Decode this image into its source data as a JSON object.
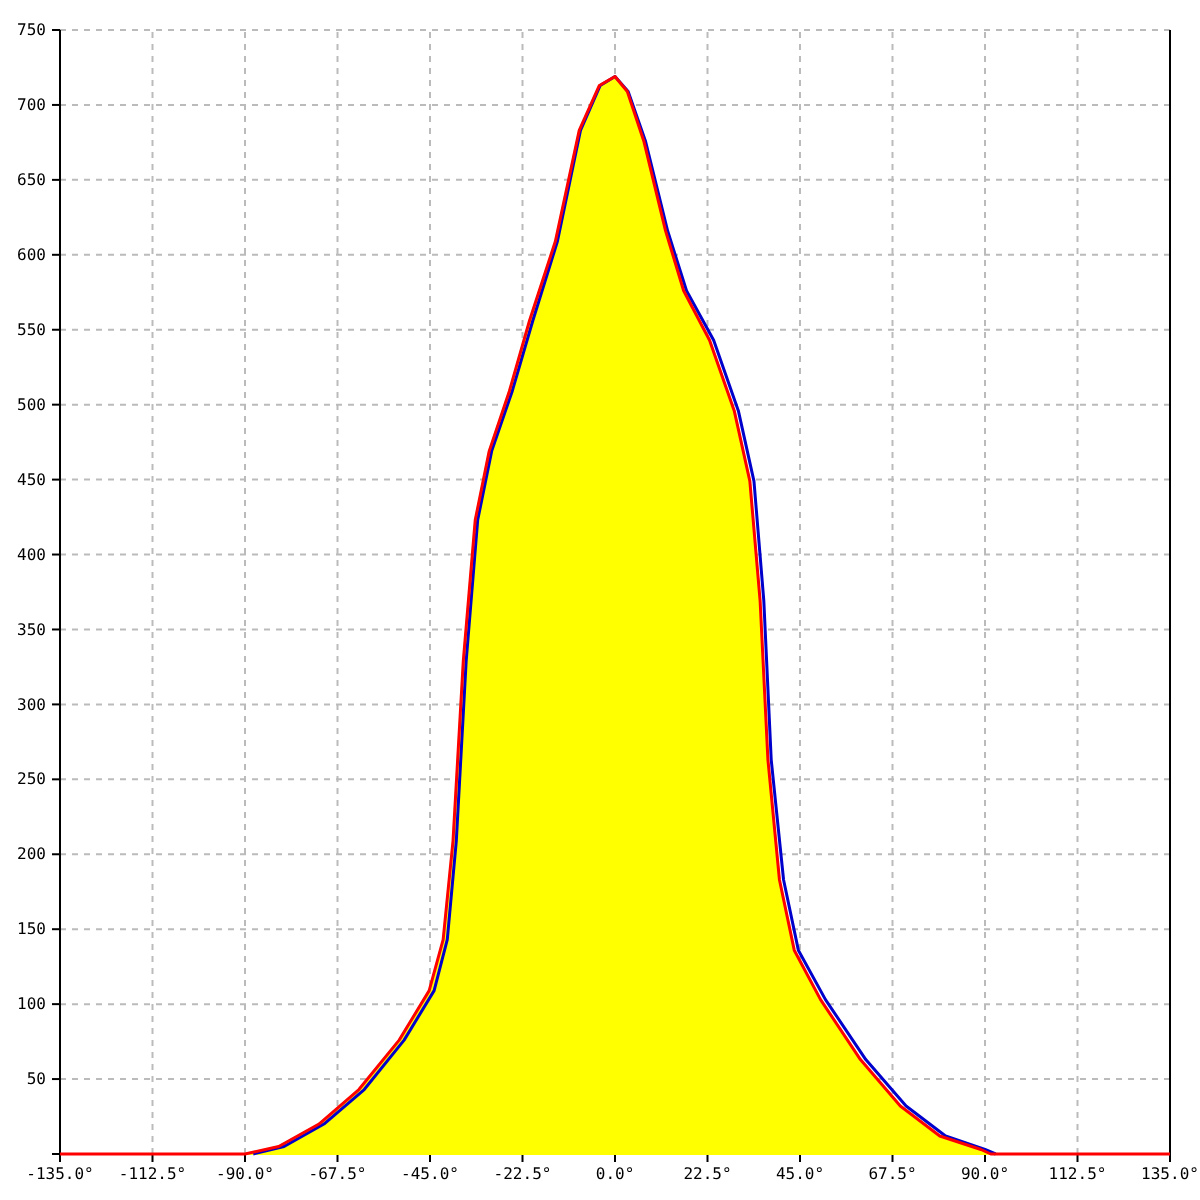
{
  "chart_data": {
    "type": "area",
    "series": [
      {
        "type": "line",
        "color": "#ff0000",
        "x": [
          -135,
          -90,
          -81.8,
          -72,
          -62.3,
          -52.5,
          -45.2,
          -41.8,
          -39.4,
          -36.9,
          -34,
          -30.6,
          -25.7,
          -20.8,
          -14.5,
          -8.7,
          -3.8,
          0,
          3,
          7,
          12.3,
          16.7,
          23,
          29,
          32.8,
          35.3,
          37.2,
          40,
          43.6,
          50,
          59.7,
          69.4,
          79,
          89,
          91.4,
          135
        ],
        "values": [
          0,
          0,
          5,
          20,
          43,
          76,
          109,
          143,
          209,
          329,
          423,
          469,
          509,
          556,
          609,
          683,
          713,
          719,
          709,
          676,
          616,
          576,
          543,
          496,
          449,
          369,
          263,
          183,
          136,
          103,
          63,
          32,
          12,
          3,
          0,
          0
        ]
      },
      {
        "color": "#ffff00",
        "x": [
          -90,
          -81.8,
          -72,
          -62.3,
          -52.5,
          -45.2,
          -41.8,
          -39.4,
          -36.9,
          -34,
          -30.6,
          -25.7,
          -20.8,
          -14.5,
          -8.7,
          -3.8,
          0,
          3,
          7,
          12.3,
          16.7,
          23,
          29,
          32.8,
          35.3,
          37.2,
          40,
          43.6,
          50,
          59.7,
          69.4,
          79,
          89,
          91.4
        ],
        "values": [
          0,
          5,
          20,
          43,
          76,
          109,
          143,
          209,
          329,
          423,
          469,
          509,
          556,
          609,
          683,
          713,
          719,
          709,
          676,
          616,
          576,
          543,
          496,
          449,
          369,
          263,
          183,
          136,
          103,
          63,
          32,
          12,
          3,
          0
        ]
      },
      {
        "type": "line",
        "color": "#0000cc",
        "x": [
          -88,
          -80.5,
          -70.8,
          -61,
          -51.3,
          -44,
          -40.8,
          -38.6,
          -36.2,
          -33.4,
          -30,
          -25,
          -20,
          -14,
          -8.4,
          -3.6,
          0,
          3.2,
          7.4,
          12.8,
          17.4,
          24,
          30,
          33.8,
          36.2,
          38,
          41,
          44.6,
          51.2,
          61,
          70.8,
          80.4,
          90,
          92.6
        ],
        "values": [
          0,
          5,
          20,
          43,
          76,
          109,
          143,
          209,
          329,
          423,
          469,
          509,
          556,
          609,
          683,
          713,
          719,
          709,
          676,
          616,
          576,
          543,
          496,
          449,
          369,
          263,
          183,
          136,
          103,
          63,
          32,
          12,
          3,
          0
        ]
      }
    ],
    "xlim": [
      -135,
      135
    ],
    "xticks": [
      {
        "value": -135,
        "label": "-135.0°"
      },
      {
        "value": -112.5,
        "label": "-112.5°"
      },
      {
        "value": -90,
        "label": "-90.0°"
      },
      {
        "value": -67.5,
        "label": "-67.5°"
      },
      {
        "value": -45,
        "label": "-45.0°"
      },
      {
        "value": -22.5,
        "label": "-22.5°"
      },
      {
        "value": 0,
        "label": "0.0°"
      },
      {
        "value": 22.5,
        "label": "22.5°"
      },
      {
        "value": 45,
        "label": "45.0°"
      },
      {
        "value": 67.5,
        "label": "67.5°"
      },
      {
        "value": 90,
        "label": "90.0°"
      },
      {
        "value": 112.5,
        "label": "112.5°"
      },
      {
        "value": 135,
        "label": "135.0°"
      }
    ],
    "ylim": [
      0,
      750
    ],
    "yticks": [
      {
        "value": 0,
        "label": null
      },
      50,
      100,
      150,
      200,
      250,
      300,
      350,
      400,
      450,
      500,
      550,
      600,
      650,
      700,
      750
    ],
    "grid": true,
    "line_style": "solid"
  }
}
